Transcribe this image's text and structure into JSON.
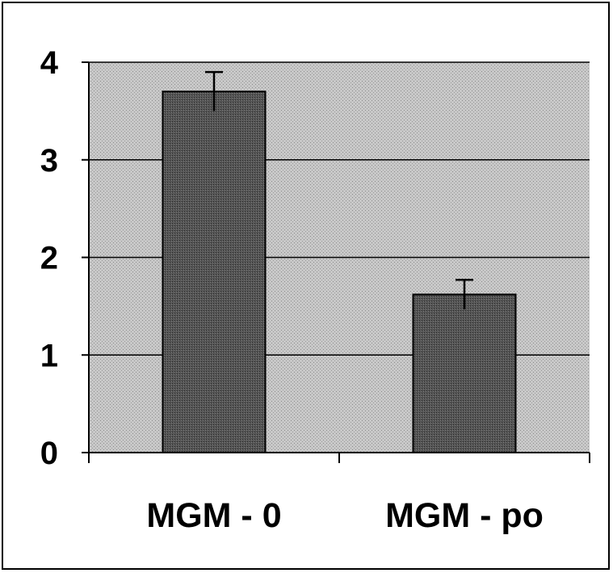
{
  "chart_data": {
    "type": "bar",
    "title": "",
    "xlabel": "",
    "ylabel": "",
    "categories": [
      "MGM - 0",
      "MGM - po"
    ],
    "values": [
      3.7,
      1.62
    ],
    "error_bars": [
      0.2,
      0.15
    ],
    "ylim": [
      0,
      4
    ],
    "yticks": [
      "0",
      "1",
      "2",
      "3",
      "4"
    ],
    "grid": true,
    "legend": "none",
    "colors": {
      "plot_background": "#c4c4c4",
      "bar_fill": "#4d4d4d",
      "bar_edge": "#000000",
      "gridline": "#000000"
    }
  }
}
